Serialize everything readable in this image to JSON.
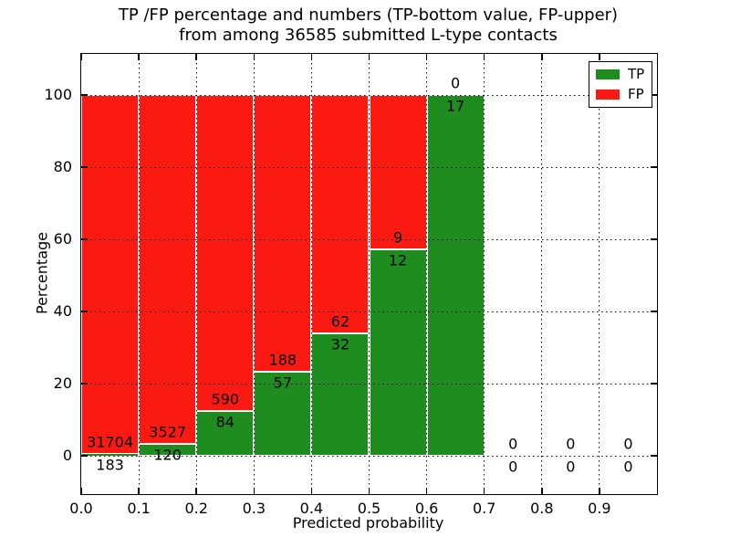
{
  "chart_data": {
    "type": "bar",
    "stacked": true,
    "title_line1": "TP /FP percentage and numbers (TP-bottom value, FP-upper)",
    "title_line2": "from among 36585 submitted L-type contacts",
    "xlabel": "Predicted probability",
    "ylabel": "Percentage",
    "total_submitted": 36585,
    "bin_left_edges": [
      0.0,
      0.1,
      0.2,
      0.3,
      0.4,
      0.5,
      0.6,
      0.7,
      0.8,
      0.9
    ],
    "bin_width": 0.1,
    "xlim": [
      0.0,
      1.0
    ],
    "ylim": [
      -10.6,
      111.4
    ],
    "xtick_labels": [
      "0.0",
      "0.1",
      "0.2",
      "0.3",
      "0.4",
      "0.5",
      "0.6",
      "0.7",
      "0.8",
      "0.9"
    ],
    "yticks": [
      0,
      20,
      40,
      60,
      80,
      100
    ],
    "ytick_labels": [
      "0",
      "20",
      "40",
      "60",
      "80",
      "100"
    ],
    "grid": "dotted",
    "axis_color": "#000000",
    "background_color": "#ffffff",
    "series": [
      {
        "name": "TP",
        "color": "#1e8c1e",
        "counts": [
          183,
          120,
          84,
          57,
          32,
          12,
          17,
          0,
          0,
          0
        ]
      },
      {
        "name": "FP",
        "color": "#fb1a12",
        "counts": [
          31704,
          3527,
          590,
          188,
          62,
          9,
          0,
          0,
          0,
          0
        ]
      }
    ],
    "tp_percent": [
      0.57,
      3.29,
      12.46,
      23.27,
      34.04,
      57.14,
      100.0,
      null,
      null,
      null
    ],
    "legend": {
      "position": "upper right",
      "entries": [
        "TP",
        "FP"
      ]
    },
    "label_note": "TP count printed below stack boundary, FP count printed above stack boundary"
  }
}
